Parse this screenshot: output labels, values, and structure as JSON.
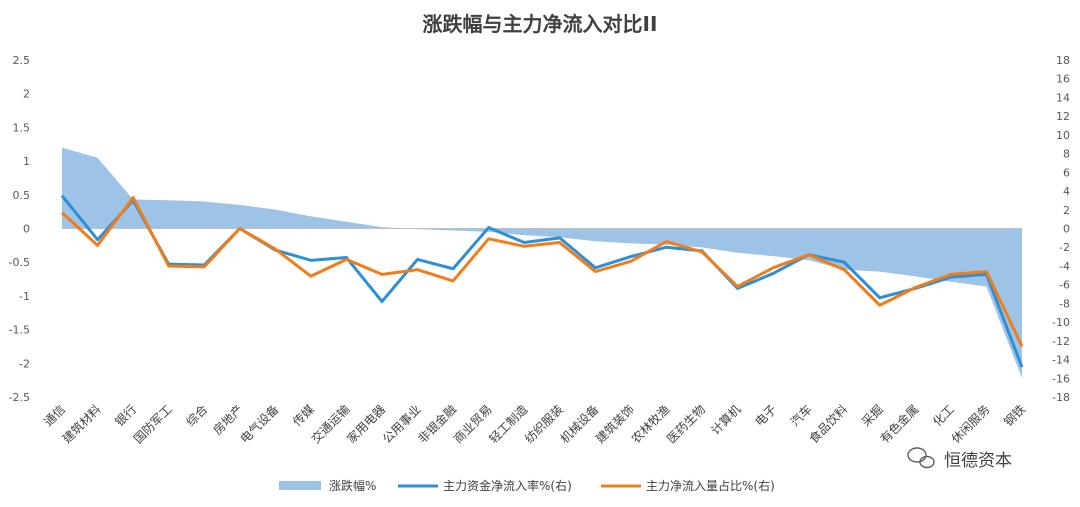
{
  "chart_data": {
    "type": "line",
    "title": "涨跌幅与主力净流入对比II",
    "categories": [
      "通信",
      "建筑材料",
      "银行",
      "国防军工",
      "综合",
      "房地产",
      "电气设备",
      "传媒",
      "交通运输",
      "家用电器",
      "公用事业",
      "非银金融",
      "商业贸易",
      "轻工制造",
      "纺织服装",
      "机械设备",
      "建筑装饰",
      "农林牧渔",
      "医药生物",
      "计算机",
      "电子",
      "汽车",
      "食品饮料",
      "采掘",
      "有色金属",
      "化工",
      "休闲服务",
      "钢铁"
    ],
    "y_left": {
      "ylim": [
        -2.5,
        2.5
      ],
      "ticks": [
        "2.5",
        "2",
        "1.5",
        "1",
        "0.5",
        "0",
        "-0.5",
        "-1",
        "-1.5",
        "-2",
        "-2.5"
      ]
    },
    "y_right": {
      "ylim": [
        -18,
        18
      ],
      "ticks": [
        "18",
        "16",
        "14",
        "12",
        "10",
        "8",
        "6",
        "4",
        "2",
        "0",
        "-2",
        "-4",
        "-6",
        "-8",
        "-10",
        "-12",
        "-14",
        "-16",
        "-18"
      ]
    },
    "series": [
      {
        "name": "涨跌幅%",
        "type": "area",
        "axis": "left",
        "color": "#9dc3e6",
        "values": [
          1.2,
          1.05,
          0.43,
          0.42,
          0.4,
          0.35,
          0.28,
          0.18,
          0.1,
          0.02,
          -0.01,
          -0.03,
          -0.05,
          -0.1,
          -0.13,
          -0.19,
          -0.22,
          -0.24,
          -0.28,
          -0.36,
          -0.41,
          -0.47,
          -0.61,
          -0.64,
          -0.71,
          -0.79,
          -0.86,
          -2.22
        ]
      },
      {
        "name": "主力资金净流入率%(右)",
        "type": "line",
        "axis": "right",
        "color": "#2e8fd6",
        "values": [
          3.5,
          -1.2,
          3.0,
          -3.8,
          -3.9,
          0.0,
          -2.3,
          -3.4,
          -3.1,
          -7.8,
          -3.3,
          -4.3,
          0.1,
          -1.5,
          -1.0,
          -4.2,
          -3.0,
          -2.0,
          -2.4,
          -6.4,
          -4.8,
          -2.8,
          -3.6,
          -7.4,
          -6.4,
          -5.2,
          -4.9,
          -14.8
        ]
      },
      {
        "name": "主力净流入量占比%(右)",
        "type": "line",
        "axis": "right",
        "color": "#f07d1a",
        "values": [
          1.7,
          -1.8,
          3.3,
          -4.0,
          -4.1,
          0.0,
          -2.2,
          -5.1,
          -3.3,
          -4.9,
          -4.4,
          -5.6,
          -1.1,
          -1.9,
          -1.5,
          -4.6,
          -3.5,
          -1.4,
          -2.5,
          -6.2,
          -4.2,
          -2.8,
          -4.4,
          -8.2,
          -6.3,
          -4.9,
          -4.6,
          -12.6
        ]
      }
    ],
    "legend_position": "bottom",
    "grid": false
  },
  "watermark": {
    "text": "恒德资本",
    "icon": "wechat-icon"
  }
}
